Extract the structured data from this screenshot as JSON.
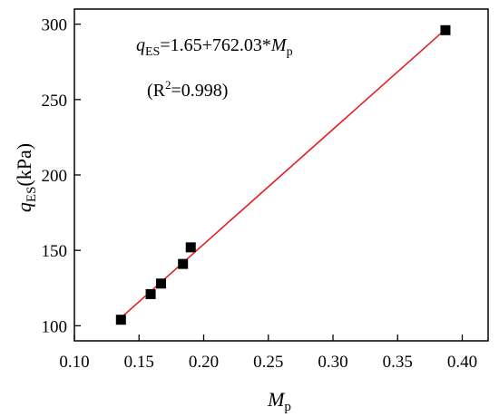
{
  "chart_data": {
    "type": "scatter",
    "xlabel": {
      "main": "M",
      "sub": "p"
    },
    "ylabel": {
      "main": "q",
      "sub": "ES",
      "unit": "(kPa)"
    },
    "xlim": [
      0.1,
      0.42
    ],
    "ylim": [
      90,
      310
    ],
    "x_ticks": [
      0.1,
      0.15,
      0.2,
      0.25,
      0.3,
      0.35,
      0.4
    ],
    "x_tick_labels": [
      "0.10",
      "0.15",
      "0.20",
      "0.25",
      "0.30",
      "0.35",
      "0.40"
    ],
    "y_ticks": [
      100,
      150,
      200,
      250,
      300
    ],
    "y_tick_labels": [
      "100",
      "150",
      "200",
      "250",
      "300"
    ],
    "grid": false,
    "series": [
      {
        "marker": "square",
        "color": "#000000",
        "points": [
          {
            "x": 0.136,
            "y": 104
          },
          {
            "x": 0.159,
            "y": 121
          },
          {
            "x": 0.167,
            "y": 128
          },
          {
            "x": 0.184,
            "y": 141
          },
          {
            "x": 0.19,
            "y": 152
          },
          {
            "x": 0.387,
            "y": 296
          }
        ]
      }
    ],
    "fit_line": {
      "intercept": 1.65,
      "slope": 762.03,
      "x_range": [
        0.136,
        0.387
      ],
      "color": "#e8161b"
    },
    "annotations": {
      "equation": {
        "q": "q",
        "q_sub": "ES",
        "body": "=1.65+762.03*",
        "M": "M",
        "M_sub": "p"
      },
      "r2": {
        "open": "(R",
        "sup": "2",
        "close": "=0.998)"
      }
    }
  }
}
